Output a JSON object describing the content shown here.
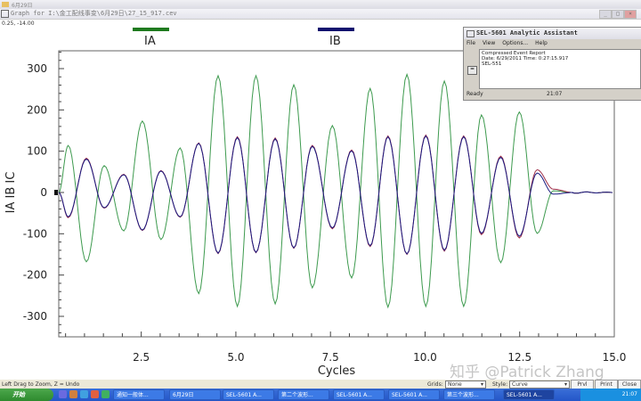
{
  "top_strip": {
    "title": "6月29日"
  },
  "window": {
    "title": "Graph for I:\\金工配线事变\\6月29日\\27_15_917.cev",
    "minimize": "_",
    "maximize": "□",
    "close": "×"
  },
  "readout": "0.25, -14.00",
  "legend": [
    {
      "name": "IA",
      "color": "#1e7a1e"
    },
    {
      "name": "IB",
      "color": "#10106e"
    }
  ],
  "dialog": {
    "title": "SEL-5601 Analytic Assistant",
    "menu": [
      "File",
      "View",
      "Options...",
      "Help"
    ],
    "lines": [
      "Compressed Event Report",
      "Date: 6/29/2011  Time:  0:27:15.917",
      "SEL-551"
    ],
    "button": "=",
    "status": "Ready",
    "status_time": "21:07"
  },
  "status_bar": {
    "hint": "Left Drag to Zoom, Z = Undo",
    "grids_label": "Grids:",
    "grids_value": "None",
    "style_label": "Style:",
    "style_value": "Curve",
    "prev_button": "Prvl",
    "print_button": "Print",
    "close_button": "Close"
  },
  "taskbar": {
    "start": "开始",
    "tasks": [
      "通知一般体...",
      "6月29日",
      "SEL-5601 A...",
      "第二个波形...",
      "SEL-5601 A...",
      "SEL-5601 A...",
      "第三个波形...",
      "SEL-5601 A..."
    ],
    "active_index": 7,
    "clock": "21:07"
  },
  "watermark": "知乎 @Patrick Zhang",
  "chart_data": {
    "type": "line",
    "xlabel": "Cycles",
    "ylabel": "IA IB IC",
    "xlim": [
      0.32,
      15.0
    ],
    "ylim": [
      -350,
      345
    ],
    "xticks": [
      "2.5",
      "5.0",
      "7.5",
      "10.0",
      "12.5",
      "15.0"
    ],
    "xtick_values": [
      2.5,
      5.0,
      7.5,
      10.0,
      12.5,
      15.0
    ],
    "yticks": [
      "300",
      "200",
      "100",
      "0",
      "-100",
      "-200",
      "-300"
    ],
    "ytick_values": [
      300,
      200,
      100,
      0,
      -100,
      -200,
      -300
    ],
    "grid": false,
    "peak_times": [
      0.57,
      1.05,
      1.52,
      2.04,
      2.53,
      3.02,
      3.53,
      4.02,
      4.53,
      5.04,
      5.53,
      6.04,
      6.53,
      7.02,
      7.55,
      8.06,
      8.55,
      9.02,
      9.52,
      10.02,
      10.51,
      11.02,
      11.49,
      12.0,
      12.49,
      12.96,
      13.39
    ],
    "series": [
      {
        "name": "IA",
        "color": "#3d9a4e",
        "peaks": [
          114,
          -168,
          65,
          -93,
          173,
          -114,
          108,
          -245,
          283,
          -276,
          283,
          -270,
          261,
          -231,
          162,
          -207,
          252,
          -278,
          286,
          -276,
          270,
          -276,
          188,
          -170,
          195,
          -99,
          4
        ]
      },
      {
        "name": "IB",
        "color": "#1a1a80",
        "peaks": [
          -59,
          81,
          -37,
          43,
          -91,
          52,
          -59,
          119,
          -147,
          133,
          -145,
          130,
          -134,
          112,
          -86,
          101,
          -129,
          135,
          -149,
          137,
          -140,
          135,
          -99,
          85,
          -106,
          47,
          -4
        ]
      },
      {
        "name": "IC",
        "color": "#a0304a",
        "peaks": [
          -61,
          83,
          -38,
          44,
          -92,
          53,
          -60,
          120,
          -148,
          135,
          -146,
          132,
          -135,
          114,
          -88,
          103,
          -131,
          137,
          -150,
          139,
          -142,
          137,
          -102,
          88,
          -110,
          55,
          8
        ]
      }
    ]
  }
}
